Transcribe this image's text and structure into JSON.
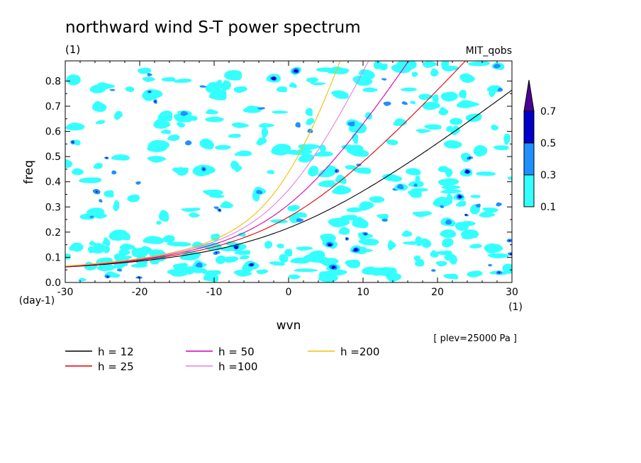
{
  "chart_data": {
    "type": "heatmap",
    "title": "northward wind S-T power spectrum",
    "subtitle_left": "(1)",
    "subtitle_right": "MIT_qobs",
    "xlabel": "wvn",
    "ylabel": "freq",
    "x_unit_label": "(1)",
    "y_unit_label": "(day-1)",
    "xlim": [
      -30,
      30
    ],
    "ylim": [
      0.0,
      0.88
    ],
    "x_ticks": [
      -30,
      -20,
      -10,
      0,
      10,
      20,
      30
    ],
    "x_tick_labels": [
      "-30",
      "-20",
      "-10",
      "0",
      "10",
      "20",
      "30"
    ],
    "y_ticks": [
      0.0,
      0.1,
      0.2,
      0.3,
      0.4,
      0.5,
      0.6,
      0.7,
      0.8
    ],
    "y_tick_labels": [
      "0.0",
      "0.1",
      "0.2",
      "0.3",
      "0.4",
      "0.5",
      "0.6",
      "0.7",
      "0.8"
    ],
    "annotation": "[ plev=25000 Pa ]",
    "colorbar": {
      "levels": [
        0.1,
        0.3,
        0.5,
        0.7
      ],
      "level_labels": [
        "0.1",
        "0.3",
        "0.5",
        "0.7"
      ],
      "colors": [
        "#33ffff",
        "#1e90ff",
        "#0000c8",
        "#4b0096"
      ]
    },
    "curves": [
      {
        "label": "h = 12",
        "h": 12,
        "color": "#000000"
      },
      {
        "label": "h = 25",
        "h": 25,
        "color": "#e00000"
      },
      {
        "label": "h = 50",
        "h": 50,
        "color": "#d000b0"
      },
      {
        "label": "h =100",
        "h": 100,
        "color": "#e080e0"
      },
      {
        "label": "h =200",
        "h": 200,
        "color": "#f0c000"
      }
    ],
    "contours_approx": [
      {
        "x": -5,
        "y": 0.07,
        "level": 0.7
      },
      {
        "x": 6,
        "y": 0.06,
        "level": 0.5
      },
      {
        "x": -7,
        "y": 0.14,
        "level": 0.5
      },
      {
        "x": 5.5,
        "y": 0.15,
        "level": 0.5
      },
      {
        "x": 9,
        "y": 0.13,
        "level": 0.5
      },
      {
        "x": -2,
        "y": 0.81,
        "level": 0.5
      },
      {
        "x": 1,
        "y": 0.84,
        "level": 0.5
      },
      {
        "x": 23,
        "y": 0.34,
        "level": 0.5
      },
      {
        "x": 24,
        "y": 0.44,
        "level": 0.5
      },
      {
        "x": 8.5,
        "y": 0.63,
        "level": 0.3
      },
      {
        "x": -12,
        "y": 0.07,
        "level": 0.3
      },
      {
        "x": -4,
        "y": 0.36,
        "level": 0.3
      },
      {
        "x": -14,
        "y": 0.67,
        "level": 0.3
      },
      {
        "x": 28,
        "y": 0.86,
        "level": 0.3
      },
      {
        "x": 15,
        "y": 0.38,
        "level": 0.3
      },
      {
        "x": 21.5,
        "y": 0.24,
        "level": 0.3
      }
    ]
  }
}
